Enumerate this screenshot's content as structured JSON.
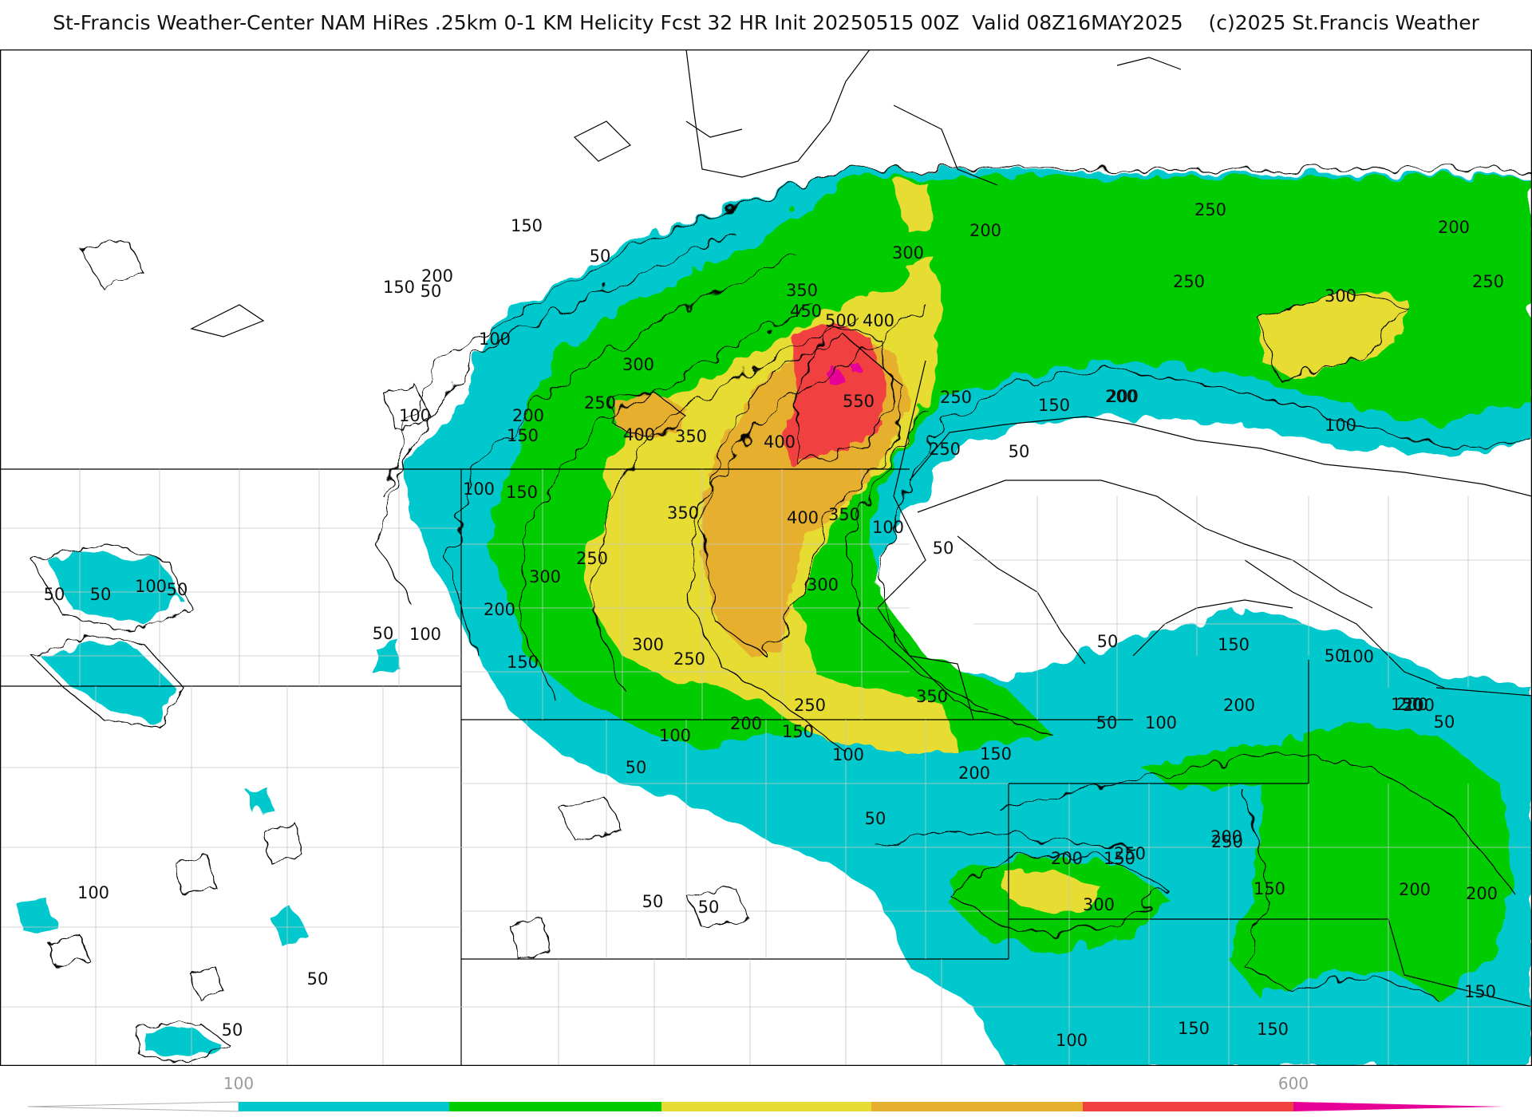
{
  "header": {
    "title": "St-Francis Weather-Center NAM HiRes .25km 0-1 KM Helicity Fcst 32 HR Init 20250515 00Z  Valid 08Z16MAY2025    (c)2025 St.Francis Weather"
  },
  "colors": {
    "c50": "#00c8cc",
    "c150": "#00cc00",
    "c300": "#e6dc32",
    "c400": "#e6af2d",
    "c500": "#f04040",
    "c600": "#e60096",
    "line": "#000000",
    "county": "#c8c8c8"
  },
  "colorbar": {
    "tick_labels": [
      "100",
      "600"
    ]
  },
  "contour_labels": [
    "50",
    "150",
    "100",
    "250",
    "200",
    "150",
    "50",
    "300",
    "350",
    "450",
    "500",
    "400",
    "300",
    "200",
    "250",
    "200",
    "250",
    "250",
    "300",
    "200",
    "100",
    "200",
    "150",
    "400",
    "350",
    "400",
    "550",
    "250",
    "150",
    "200",
    "250",
    "100",
    "150",
    "50",
    "100",
    "400",
    "350",
    "350",
    "100",
    "50",
    "250",
    "300",
    "300",
    "200",
    "100",
    "50",
    "50",
    "100",
    "50",
    "50",
    "300",
    "150",
    "250",
    "250",
    "350",
    "200",
    "150",
    "100",
    "50",
    "50",
    "100",
    "150",
    "200",
    "50",
    "50",
    "150",
    "200",
    "100",
    "50",
    "100",
    "150",
    "200",
    "200",
    "250",
    "50",
    "200",
    "150",
    "200",
    "150",
    "300",
    "250",
    "150",
    "200",
    "200",
    "150",
    "150",
    "100",
    "50",
    "50",
    "50",
    "50",
    "100",
    "150"
  ]
}
